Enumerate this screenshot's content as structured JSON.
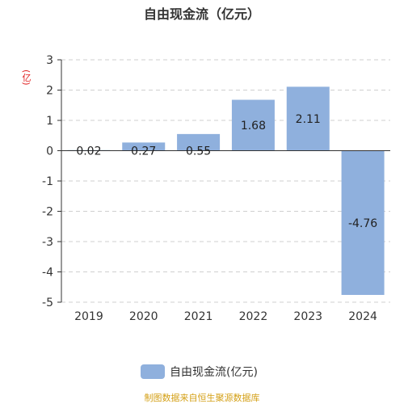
{
  "chart_data": {
    "type": "bar",
    "title": "自由现金流（亿元）",
    "ylabel": "(亿)",
    "categories": [
      "2019",
      "2020",
      "2021",
      "2022",
      "2023",
      "2024"
    ],
    "series": [
      {
        "name": "自由现金流(亿元)",
        "values": [
          0.02,
          0.27,
          0.55,
          1.68,
          2.11,
          -4.76
        ],
        "labels": [
          "0.02",
          "0.27",
          "0.55",
          "1.68",
          "2.11",
          "-4.76"
        ],
        "color": "#8fb0dd"
      }
    ],
    "ylim": [
      -5,
      3
    ],
    "yticks": [
      "3",
      "2",
      "1",
      "0",
      "-1",
      "-2",
      "-3",
      "-4",
      "-5"
    ],
    "grid": true,
    "legend_position": "bottom"
  },
  "source": "制图数据来自恒生聚源数据库"
}
